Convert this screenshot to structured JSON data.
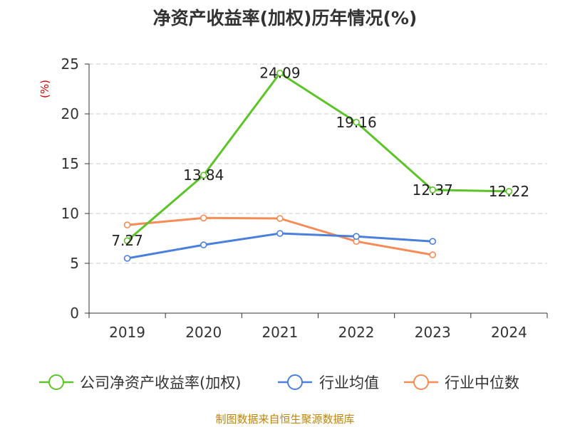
{
  "chart_data": {
    "type": "line",
    "title": "净资产收益率(加权)历年情况(%)",
    "ylabel": "(%)",
    "xlabel": "",
    "categories": [
      "2019",
      "2020",
      "2021",
      "2022",
      "2023",
      "2024"
    ],
    "ylim": [
      0,
      25
    ],
    "yticks": [
      0,
      5,
      10,
      15,
      20,
      25
    ],
    "grid": true,
    "legend_position": "bottom",
    "series": [
      {
        "name": "公司净资产收益率(加权)",
        "color": "#5cc329",
        "values": [
          7.27,
          13.84,
          24.09,
          19.16,
          12.37,
          12.22
        ],
        "labels": true
      },
      {
        "name": "行业均值",
        "color": "#4a7fdc",
        "values": [
          5.5,
          6.85,
          8.0,
          7.7,
          7.2,
          null
        ],
        "labels": false
      },
      {
        "name": "行业中位数",
        "color": "#f58b55",
        "values": [
          8.85,
          9.55,
          9.5,
          7.2,
          5.85,
          null
        ],
        "labels": false
      }
    ]
  },
  "source_note": "制图数据来自恒生聚源数据库"
}
